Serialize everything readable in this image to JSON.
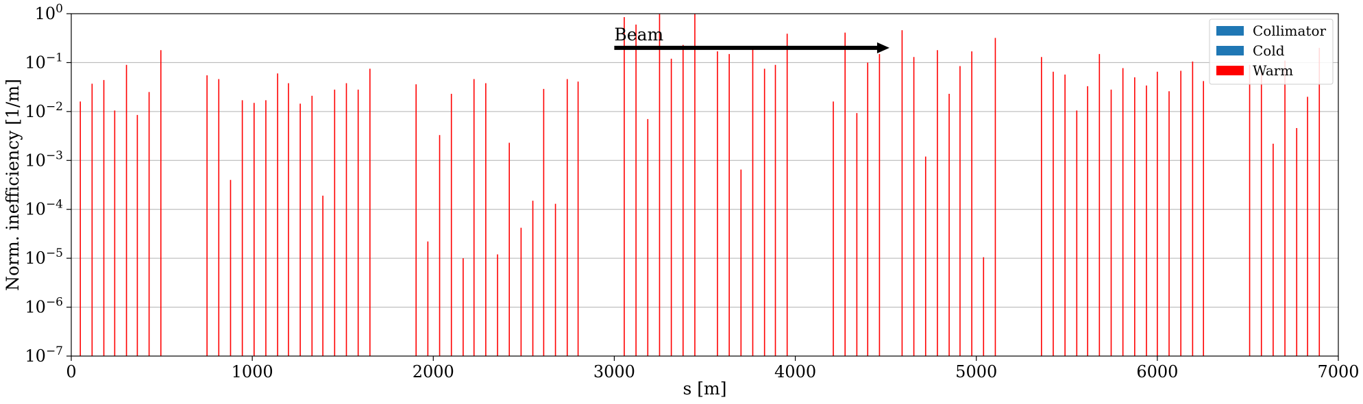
{
  "chart_data": {
    "type": "bar",
    "title": "",
    "xlabel": "s [m]",
    "ylabel": "Norm. inefficiency [1/m]",
    "xlim": [
      0,
      7000
    ],
    "ylim": [
      1e-07,
      1
    ],
    "yscale": "log",
    "grid": "y-major",
    "legend_position": "top-right",
    "x_ticks": [
      {
        "value": 0,
        "label": "0"
      },
      {
        "value": 1000,
        "label": "1000"
      },
      {
        "value": 2000,
        "label": "2000"
      },
      {
        "value": 3000,
        "label": "3000"
      },
      {
        "value": 4000,
        "label": "4000"
      },
      {
        "value": 5000,
        "label": "5000"
      },
      {
        "value": 6000,
        "label": "6000"
      },
      {
        "value": 7000,
        "label": "7000"
      }
    ],
    "y_ticks": [
      {
        "exp": -7,
        "base": "10",
        "sup": "−7"
      },
      {
        "exp": -6,
        "base": "10",
        "sup": "−6"
      },
      {
        "exp": -5,
        "base": "10",
        "sup": "−5"
      },
      {
        "exp": -4,
        "base": "10",
        "sup": "−4"
      },
      {
        "exp": -3,
        "base": "10",
        "sup": "−3"
      },
      {
        "exp": -2,
        "base": "10",
        "sup": "−2"
      },
      {
        "exp": -1,
        "base": "10",
        "sup": "−1"
      },
      {
        "exp": 0,
        "base": "10",
        "sup": "0"
      }
    ],
    "legend": [
      {
        "label": "Collimator",
        "color": "#1f77b4"
      },
      {
        "label": "Cold",
        "color": "#1f77b4"
      },
      {
        "label": "Warm",
        "color": "#ff0000"
      }
    ],
    "annotation": {
      "text": "Beam",
      "arrow_from": [
        3000,
        0.2
      ],
      "arrow_to": [
        4520,
        0.2
      ]
    },
    "series": [
      {
        "name": "Warm",
        "color": "#ff0000",
        "points": [
          [
            50,
            0.016
          ],
          [
            115,
            0.037
          ],
          [
            180,
            0.044
          ],
          [
            240,
            0.0105
          ],
          [
            305,
            0.09
          ],
          [
            365,
            0.0085
          ],
          [
            430,
            0.025
          ],
          [
            495,
            0.18
          ],
          [
            750,
            0.055
          ],
          [
            815,
            0.046
          ],
          [
            880,
            0.0004
          ],
          [
            945,
            0.017
          ],
          [
            1010,
            0.015
          ],
          [
            1075,
            0.017
          ],
          [
            1140,
            0.06
          ],
          [
            1200,
            0.038
          ],
          [
            1265,
            0.0145
          ],
          [
            1330,
            0.021
          ],
          [
            1390,
            0.00019
          ],
          [
            1455,
            0.028
          ],
          [
            1520,
            0.038
          ],
          [
            1585,
            0.028
          ],
          [
            1650,
            0.075
          ],
          [
            1905,
            0.036
          ],
          [
            1970,
            2.2e-05
          ],
          [
            2035,
            0.0033
          ],
          [
            2100,
            0.023
          ],
          [
            2165,
            1e-05
          ],
          [
            2225,
            0.046
          ],
          [
            2290,
            0.038
          ],
          [
            2355,
            1.2e-05
          ],
          [
            2420,
            0.0023
          ],
          [
            2485,
            4.2e-05
          ],
          [
            2550,
            0.00015
          ],
          [
            2610,
            0.029
          ],
          [
            2675,
            0.00013
          ],
          [
            2740,
            0.046
          ],
          [
            2800,
            0.041
          ],
          [
            3055,
            0.85
          ],
          [
            3120,
            0.6
          ],
          [
            3185,
            0.007
          ],
          [
            3250,
            0.98
          ],
          [
            3315,
            0.12
          ],
          [
            3380,
            0.23
          ],
          [
            3445,
            0.98
          ],
          [
            3570,
            0.17
          ],
          [
            3635,
            0.15
          ],
          [
            3700,
            0.00065
          ],
          [
            3765,
            0.21
          ],
          [
            3830,
            0.075
          ],
          [
            3890,
            0.09
          ],
          [
            3955,
            0.39
          ],
          [
            4210,
            0.016
          ],
          [
            4275,
            0.41
          ],
          [
            4340,
            0.0093
          ],
          [
            4400,
            0.1
          ],
          [
            4465,
            0.15
          ],
          [
            4590,
            0.46
          ],
          [
            4655,
            0.13
          ],
          [
            4720,
            0.0012
          ],
          [
            4785,
            0.18
          ],
          [
            4850,
            0.023
          ],
          [
            4910,
            0.085
          ],
          [
            4975,
            0.17
          ],
          [
            5040,
            1.05e-05
          ],
          [
            5105,
            0.32
          ],
          [
            5360,
            0.13
          ],
          [
            5425,
            0.065
          ],
          [
            5490,
            0.057
          ],
          [
            5555,
            0.0105
          ],
          [
            5615,
            0.033
          ],
          [
            5680,
            0.15
          ],
          [
            5745,
            0.028
          ],
          [
            5810,
            0.077
          ],
          [
            5875,
            0.05
          ],
          [
            5940,
            0.034
          ],
          [
            6000,
            0.065
          ],
          [
            6065,
            0.026
          ],
          [
            6130,
            0.068
          ],
          [
            6195,
            0.105
          ],
          [
            6255,
            0.042
          ],
          [
            6510,
            0.09
          ],
          [
            6575,
            0.075
          ],
          [
            6640,
            0.0022
          ],
          [
            6705,
            0.11
          ],
          [
            6770,
            0.0046
          ],
          [
            6830,
            0.02
          ],
          [
            6895,
            0.2
          ]
        ]
      }
    ]
  }
}
